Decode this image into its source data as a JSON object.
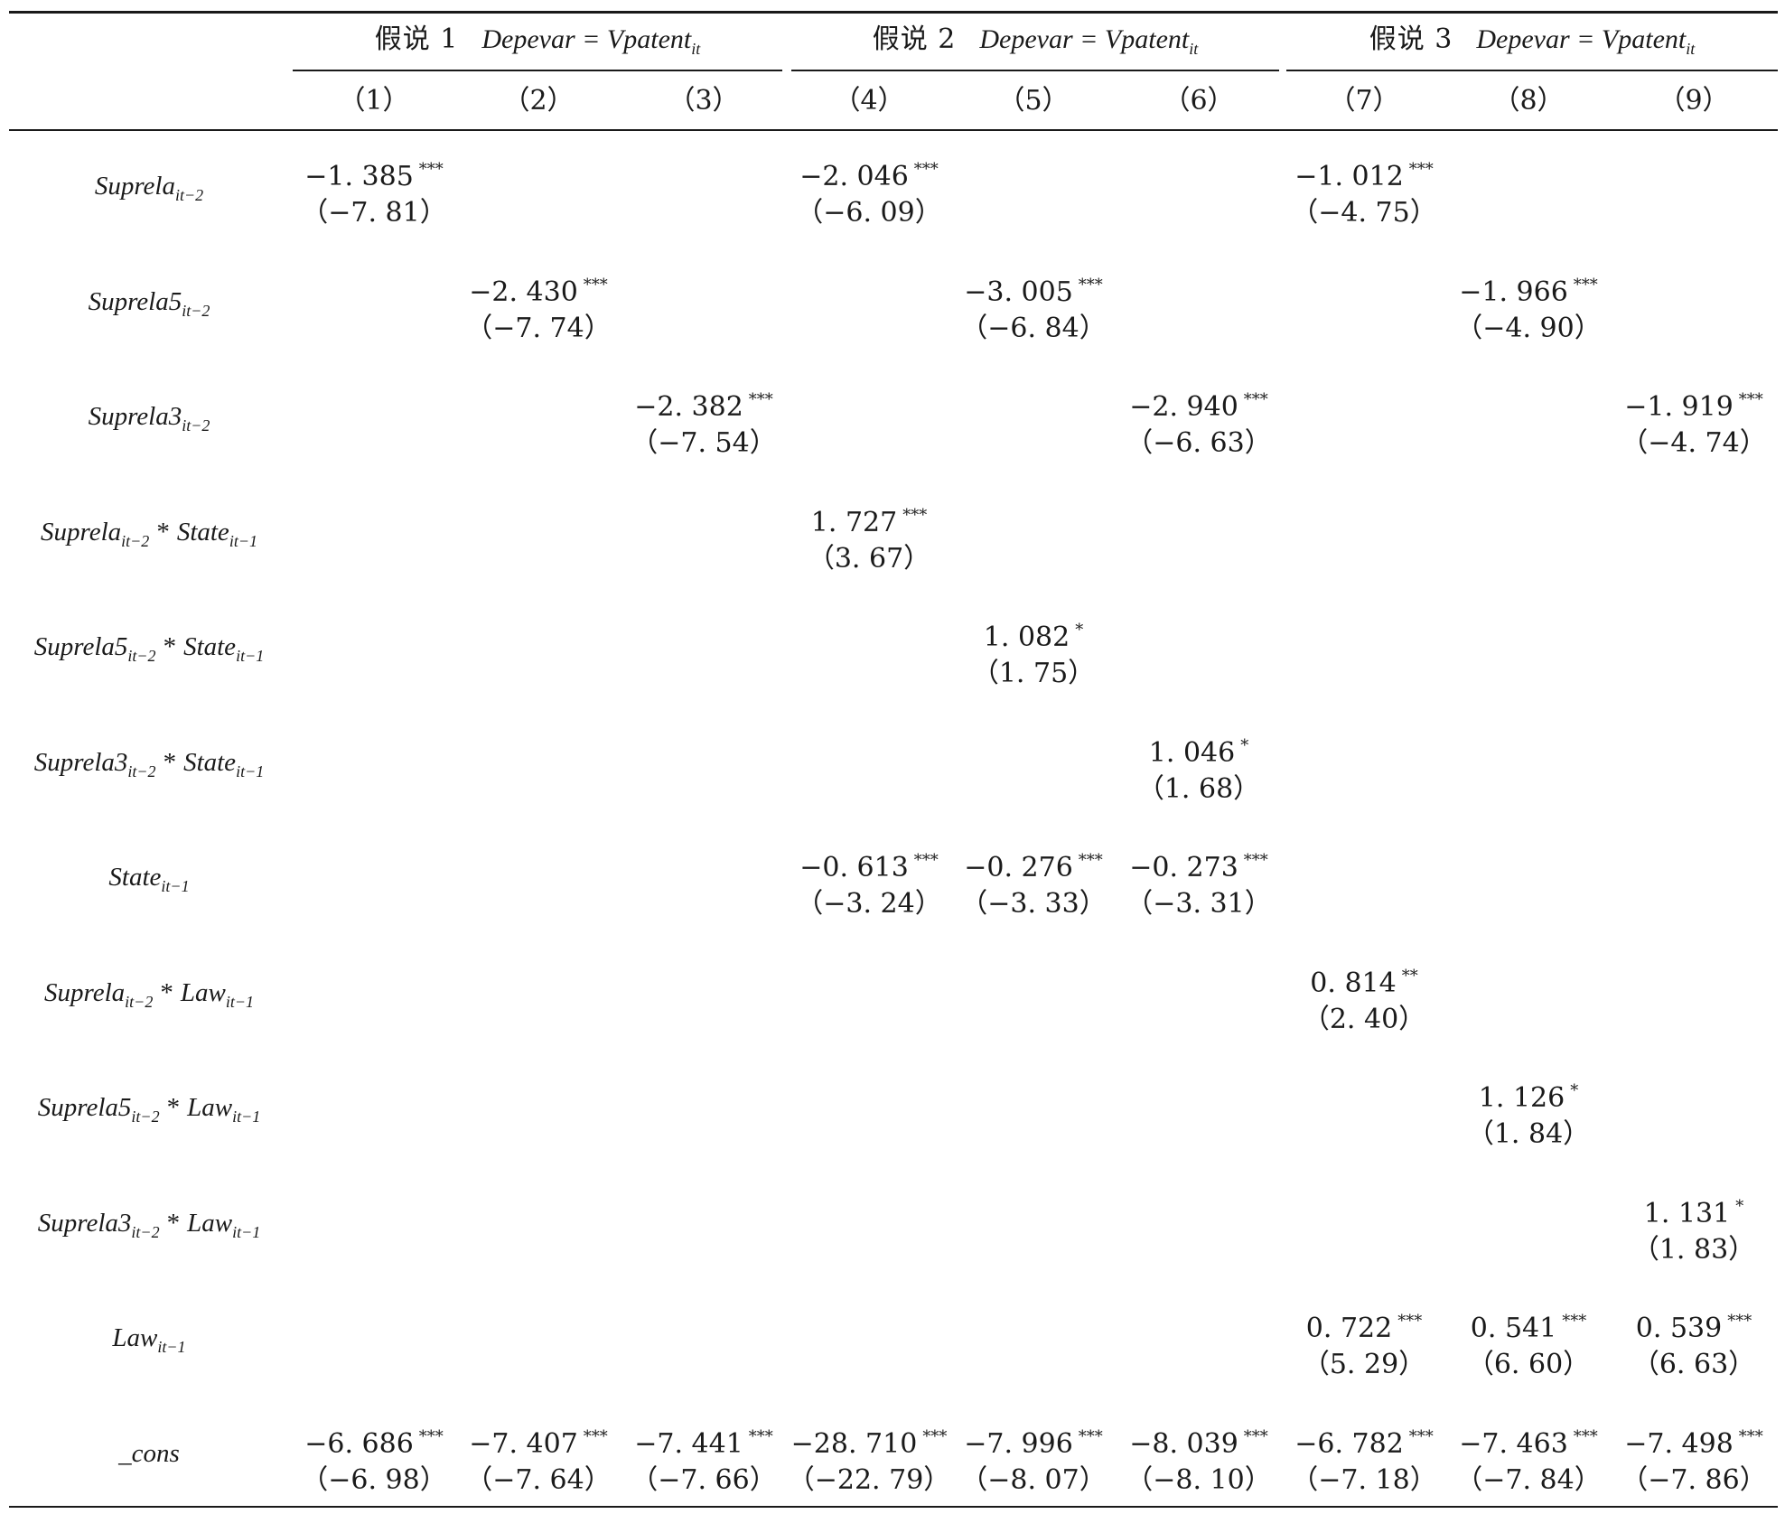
{
  "hypotheses": [
    {
      "label": "假说 1",
      "depvar": "Depevar = Vpatent",
      "depvar_sub": "it"
    },
    {
      "label": "假说 2",
      "depvar": "Depevar = Vpatent",
      "depvar_sub": "it"
    },
    {
      "label": "假说 3",
      "depvar": "Depevar = Vpatent",
      "depvar_sub": "it"
    }
  ],
  "columns": [
    "（1）",
    "（2）",
    "（3）",
    "（4）",
    "（5）",
    "（6）",
    "（7）",
    "（8）",
    "（9）"
  ],
  "rows": [
    {
      "name": "Suprela",
      "name_sub": "it−2",
      "interaction": "",
      "inter_sub": "",
      "cells": [
        {
          "col": 0,
          "coef": "−1. 385",
          "stars": "***",
          "t": "（−7. 81）"
        },
        {
          "col": 3,
          "coef": "−2. 046",
          "stars": "***",
          "t": "（−6. 09）"
        },
        {
          "col": 6,
          "coef": "−1. 012",
          "stars": "***",
          "t": "（−4. 75）"
        }
      ]
    },
    {
      "name": "Suprela5",
      "name_sub": "it−2",
      "interaction": "",
      "inter_sub": "",
      "cells": [
        {
          "col": 1,
          "coef": "−2. 430",
          "stars": "***",
          "t": "（−7. 74）"
        },
        {
          "col": 4,
          "coef": "−3. 005",
          "stars": "***",
          "t": "（−6. 84）"
        },
        {
          "col": 7,
          "coef": "−1. 966",
          "stars": "***",
          "t": "（−4. 90）"
        }
      ]
    },
    {
      "name": "Suprela3",
      "name_sub": "it−2",
      "interaction": "",
      "inter_sub": "",
      "cells": [
        {
          "col": 2,
          "coef": "−2. 382",
          "stars": "***",
          "t": "（−7. 54）"
        },
        {
          "col": 5,
          "coef": "−2. 940",
          "stars": "***",
          "t": "（−6. 63）"
        },
        {
          "col": 8,
          "coef": "−1. 919",
          "stars": "***",
          "t": "（−4. 74）"
        }
      ]
    },
    {
      "name": "Suprela",
      "name_sub": "it−2",
      "interaction": "State",
      "inter_sub": "it−1",
      "cells": [
        {
          "col": 3,
          "coef": "1. 727",
          "stars": "***",
          "t": "（3. 67）"
        }
      ]
    },
    {
      "name": "Suprela5",
      "name_sub": "it−2",
      "interaction": "State",
      "inter_sub": "it−1",
      "cells": [
        {
          "col": 4,
          "coef": "1. 082",
          "stars": "*",
          "t": "（1. 75）"
        }
      ]
    },
    {
      "name": "Suprela3",
      "name_sub": "it−2",
      "interaction": "State",
      "inter_sub": "it−1",
      "cells": [
        {
          "col": 5,
          "coef": "1. 046",
          "stars": "*",
          "t": "（1. 68）"
        }
      ]
    },
    {
      "name": "State",
      "name_sub": "it−1",
      "interaction": "",
      "inter_sub": "",
      "cells": [
        {
          "col": 3,
          "coef": "−0. 613",
          "stars": "***",
          "t": "（−3. 24）"
        },
        {
          "col": 4,
          "coef": "−0. 276",
          "stars": "***",
          "t": "（−3. 33）"
        },
        {
          "col": 5,
          "coef": "−0. 273",
          "stars": "***",
          "t": "（−3. 31）"
        }
      ]
    },
    {
      "name": "Suprela",
      "name_sub": "it−2",
      "interaction": "Law",
      "inter_sub": "it−1",
      "cells": [
        {
          "col": 6,
          "coef": "0. 814",
          "stars": "**",
          "t": "（2. 40）"
        }
      ]
    },
    {
      "name": "Suprela5",
      "name_sub": "it−2",
      "interaction": "Law",
      "inter_sub": "it−1",
      "cells": [
        {
          "col": 7,
          "coef": "1. 126",
          "stars": "*",
          "t": "（1. 84）"
        }
      ]
    },
    {
      "name": "Suprela3",
      "name_sub": "it−2",
      "interaction": "Law",
      "inter_sub": "it−1",
      "cells": [
        {
          "col": 8,
          "coef": "1. 131",
          "stars": "*",
          "t": "（1. 83）"
        }
      ]
    },
    {
      "name": "Law",
      "name_sub": "it−1",
      "interaction": "",
      "inter_sub": "",
      "cells": [
        {
          "col": 6,
          "coef": "0. 722",
          "stars": "***",
          "t": "（5. 29）"
        },
        {
          "col": 7,
          "coef": "0. 541",
          "stars": "***",
          "t": "（6. 60）"
        },
        {
          "col": 8,
          "coef": "0. 539",
          "stars": "***",
          "t": "（6. 63）"
        }
      ]
    },
    {
      "name": "_cons",
      "name_sub": "",
      "interaction": "",
      "inter_sub": "",
      "cells": [
        {
          "col": 0,
          "coef": "−6. 686",
          "stars": "***",
          "t": "（−6. 98）"
        },
        {
          "col": 1,
          "coef": "−7. 407",
          "stars": "***",
          "t": "（−7. 64）"
        },
        {
          "col": 2,
          "coef": "−7. 441",
          "stars": "***",
          "t": "（−7. 66）"
        },
        {
          "col": 3,
          "coef": "−28. 710",
          "stars": "***",
          "t": "（−22. 79）"
        },
        {
          "col": 4,
          "coef": "−7. 996",
          "stars": "***",
          "t": "（−8. 07）"
        },
        {
          "col": 5,
          "coef": "−8. 039",
          "stars": "***",
          "t": "（−8. 10）"
        },
        {
          "col": 6,
          "coef": "−6. 782",
          "stars": "***",
          "t": "（−7. 18）"
        },
        {
          "col": 7,
          "coef": "−7. 463",
          "stars": "***",
          "t": "（−7. 84）"
        },
        {
          "col": 8,
          "coef": "−7. 498",
          "stars": "***",
          "t": "（−7. 86）"
        }
      ]
    }
  ]
}
